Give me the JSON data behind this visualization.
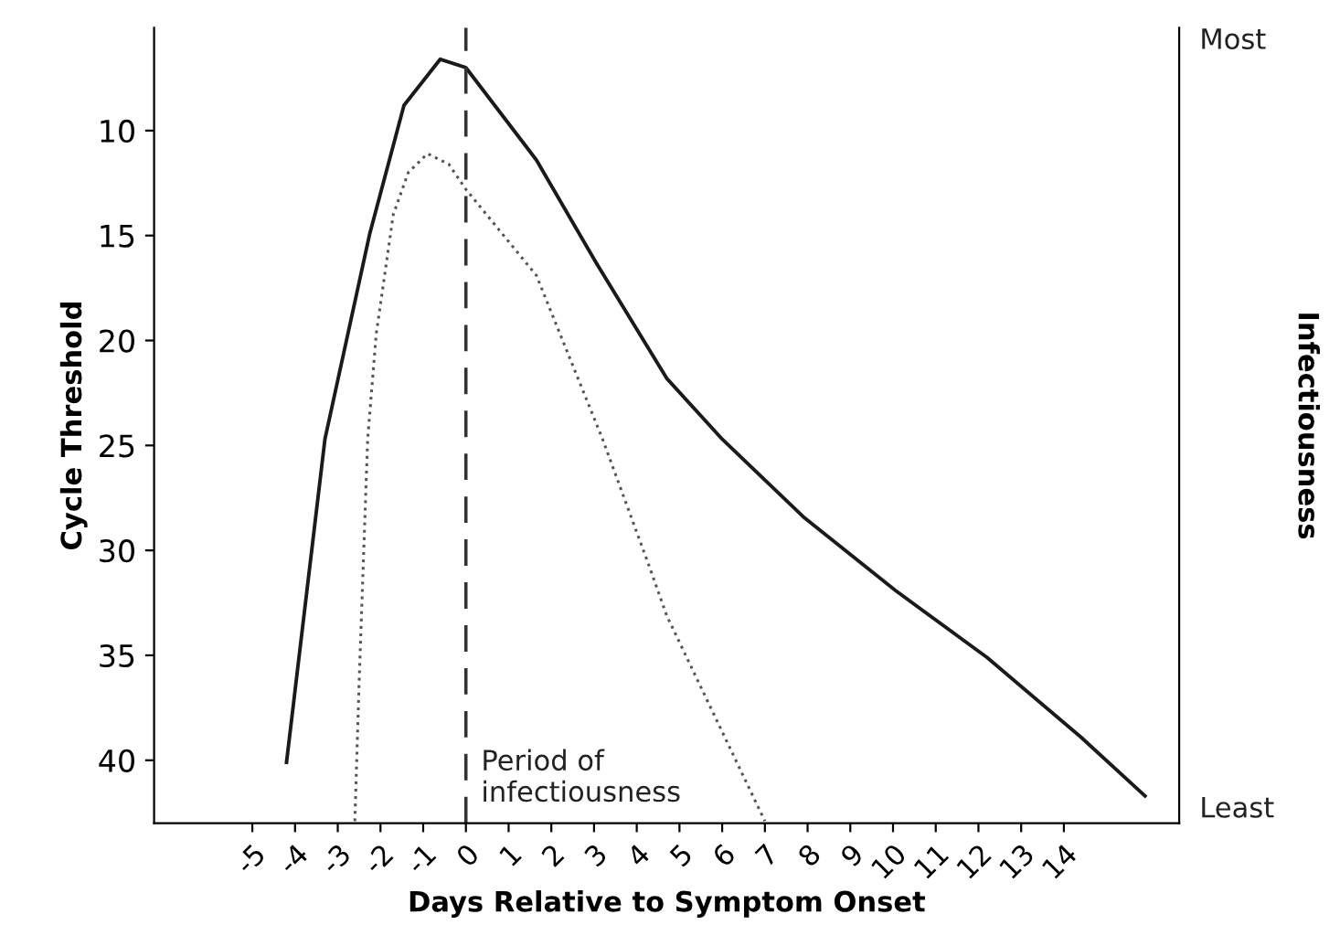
{
  "chart_data": {
    "type": "line",
    "xlabel": "Days Relative to Symptom Onset",
    "ylabel": "Cycle Threshold",
    "y2label": "Infectiousness",
    "xlim": [
      -7.3,
      16.7
    ],
    "xticks": [
      -5,
      -4,
      -3,
      -2,
      -1,
      0,
      1,
      2,
      3,
      4,
      5,
      6,
      7,
      8,
      9,
      10,
      11,
      12,
      13,
      14
    ],
    "ylim": [
      43,
      5.1
    ],
    "yticks": [
      10,
      15,
      20,
      25,
      30,
      35,
      40
    ],
    "annotations": [
      "Most",
      "Least"
    ],
    "grid": false,
    "legend": false,
    "series": [
      {
        "color": "#1a1a1a",
        "line_style": "solid",
        "x": [
          -4.2,
          -3.3,
          -2.25,
          -1.45,
          -0.6,
          0,
          1.65,
          3.05,
          4.7,
          6,
          7.9,
          10.05,
          12.2,
          14.4,
          15.9
        ],
        "values": [
          40.1,
          24.7,
          14.9,
          8.8,
          6.6,
          7.0,
          11.4,
          16.3,
          21.8,
          24.7,
          28.4,
          31.9,
          35.1,
          38.9,
          41.7
        ]
      },
      {
        "color": "#555555",
        "line_style": "dotted",
        "x": [
          -2.6,
          -2.5,
          -2.3,
          -2.1,
          -1.7,
          -1.35,
          -0.9,
          -0.4,
          0,
          1.65,
          3.2,
          4.3,
          4.7,
          7.0
        ],
        "values": [
          42.9,
          36.3,
          24.7,
          19.7,
          14.0,
          12.0,
          11.1,
          11.6,
          12.8,
          16.9,
          24.7,
          30.8,
          33.1,
          42.9
        ]
      }
    ],
    "ref_lines": [
      {
        "axis": "x",
        "value": 0,
        "label": "Period of\ninfectiousness",
        "line_style": "dashed",
        "color": "#333333"
      }
    ]
  }
}
